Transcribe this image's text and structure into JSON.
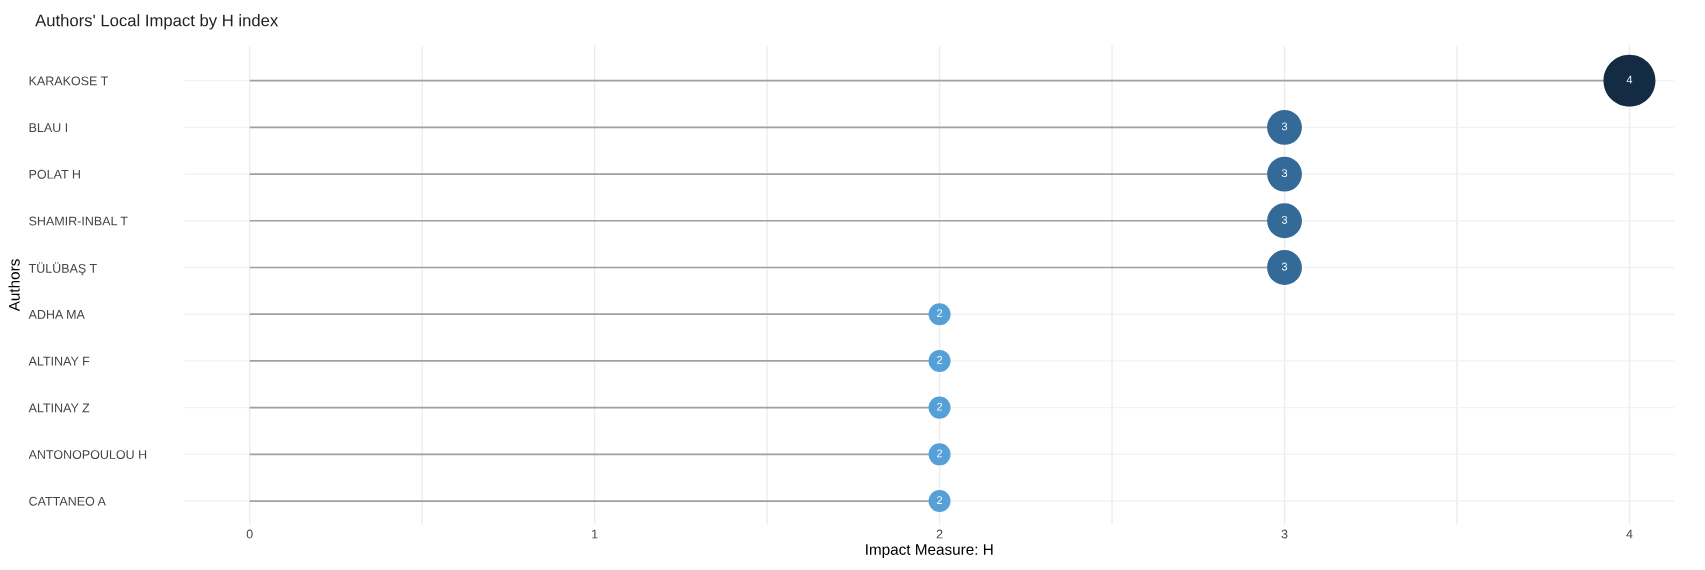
{
  "chart_data": {
    "type": "lollipop",
    "orientation": "horizontal",
    "title": "Authors' Local Impact by H index",
    "xlabel": "Impact Measure: H",
    "ylabel": "Authors",
    "categories": [
      "KARAKOSE T",
      "BLAU I",
      "POLAT H",
      "SHAMIR-INBAL T",
      "TÜLÜBAŞ T",
      "ADHA MA",
      "ALTINAY F",
      "ALTINAY Z",
      "ANTONOPOULOU H",
      "CATTANEO A"
    ],
    "values": [
      4,
      3,
      3,
      3,
      3,
      2,
      2,
      2,
      2,
      2
    ],
    "colors": [
      "#132b43",
      "#336a98",
      "#336a98",
      "#336a98",
      "#336a98",
      "#56a0d8",
      "#56a0d8",
      "#56a0d8",
      "#56a0d8",
      "#56a0d8"
    ],
    "xlim": [
      -0.19,
      4.13
    ],
    "xticks": [
      0,
      {
        "value": 0.5,
        "label": null
      },
      1,
      {
        "value": 1.5,
        "label": null
      },
      2,
      {
        "value": 2.5,
        "label": null
      },
      3,
      {
        "value": 3.5,
        "label": null
      },
      4
    ],
    "sizes": [
      1,
      0.45,
      0.45,
      0.45,
      0.45,
      0.18,
      0.18,
      0.18,
      0.18,
      0.18
    ],
    "data_labels": true,
    "grid": true
  }
}
